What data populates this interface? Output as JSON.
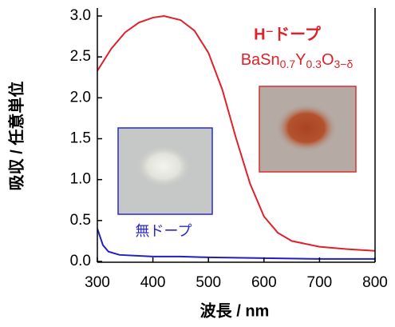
{
  "chart_data": {
    "type": "line",
    "xlabel": "波長 / nm",
    "ylabel": "吸収 / 任意単位",
    "xlim": [
      300,
      800
    ],
    "xticks": [
      300,
      400,
      500,
      600,
      700,
      800
    ],
    "ylim": [
      0,
      3
    ],
    "yticks": [
      {
        "value": 0,
        "label": "0.0"
      },
      0.5,
      {
        "value": 1,
        "label": "1.0"
      },
      1.5,
      {
        "value": 2,
        "label": "2.0"
      },
      2.5,
      {
        "value": 3,
        "label": "3.0"
      }
    ],
    "series": [
      {
        "color": "#e0202a",
        "x": [
          300,
          325,
          350,
          375,
          400,
          420,
          450,
          475,
          500,
          525,
          550,
          575,
          600,
          625,
          650,
          700,
          750,
          800
        ],
        "values": [
          2.33,
          2.6,
          2.8,
          2.92,
          2.98,
          3.0,
          2.95,
          2.82,
          2.55,
          2.1,
          1.5,
          0.95,
          0.55,
          0.35,
          0.25,
          0.18,
          0.15,
          0.13
        ]
      },
      {
        "color": "#2020c0",
        "x": [
          300,
          310,
          320,
          340,
          400,
          450,
          500,
          600,
          700,
          800
        ],
        "values": [
          0.4,
          0.2,
          0.12,
          0.08,
          0.06,
          0.06,
          0.05,
          0.04,
          0.03,
          0.03
        ]
      }
    ],
    "annotations": {
      "doped": "H⁻ドープ",
      "formula": [
        "BaSn",
        "0.7",
        "Y",
        "0.3",
        "O",
        "3−δ"
      ],
      "undoped": "無ドープ"
    }
  }
}
